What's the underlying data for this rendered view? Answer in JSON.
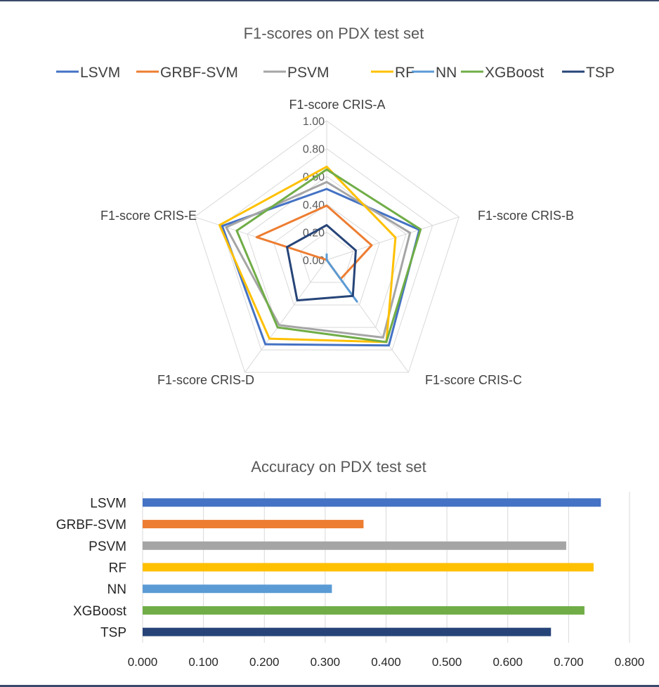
{
  "chart_data": [
    {
      "type": "radar",
      "title": "F1-scores on PDX test set",
      "axes": [
        "F1-score CRIS-A",
        "F1-score CRIS-B",
        "F1-score CRIS-C",
        "F1-score CRIS-D",
        "F1-score CRIS-E"
      ],
      "rlim": [
        0,
        1
      ],
      "ticks": [
        "0.00",
        "0.20",
        "0.40",
        "0.60",
        "0.80",
        "1.00"
      ],
      "tick_values": [
        0,
        0.2,
        0.4,
        0.6,
        0.8,
        1.0
      ],
      "legend_position": "top",
      "grid": true,
      "series": [
        {
          "name": "LSVM",
          "color": "#4472c4",
          "values": [
            0.51,
            0.7,
            0.76,
            0.75,
            0.79
          ]
        },
        {
          "name": "GRBF-SVM",
          "color": "#ed7d31",
          "values": [
            0.39,
            0.34,
            0.17,
            0.0,
            0.53
          ]
        },
        {
          "name": "PSVM",
          "color": "#a5a5a5",
          "values": [
            0.56,
            0.63,
            0.69,
            0.58,
            0.76
          ]
        },
        {
          "name": "RF",
          "color": "#ffc000",
          "values": [
            0.67,
            0.52,
            0.73,
            0.7,
            0.81
          ]
        },
        {
          "name": "NN",
          "color": "#5b9bd5",
          "values": [
            0.04,
            0.0,
            0.37,
            0.0,
            0.0
          ]
        },
        {
          "name": "XGBoost",
          "color": "#70ad47",
          "values": [
            0.65,
            0.71,
            0.73,
            0.6,
            0.68
          ]
        },
        {
          "name": "TSP",
          "color": "#264478",
          "values": [
            0.25,
            0.22,
            0.32,
            0.36,
            0.3
          ]
        }
      ]
    },
    {
      "type": "bar",
      "orientation": "horizontal",
      "title": "Accuracy on PDX test set",
      "categories": [
        "LSVM",
        "GRBF-SVM",
        "PSVM",
        "RF",
        "NN",
        "XGBoost",
        "TSP"
      ],
      "values": [
        0.753,
        0.363,
        0.696,
        0.741,
        0.311,
        0.726,
        0.671
      ],
      "colors": [
        "#4472c4",
        "#ed7d31",
        "#a5a5a5",
        "#ffc000",
        "#5b9bd5",
        "#70ad47",
        "#264478"
      ],
      "xlim": [
        0,
        0.8
      ],
      "ticks": [
        "0.000",
        "0.100",
        "0.200",
        "0.300",
        "0.400",
        "0.500",
        "0.600",
        "0.700",
        "0.800"
      ],
      "tick_values": [
        0,
        0.1,
        0.2,
        0.3,
        0.4,
        0.5,
        0.6,
        0.7,
        0.8
      ],
      "grid": true
    }
  ]
}
